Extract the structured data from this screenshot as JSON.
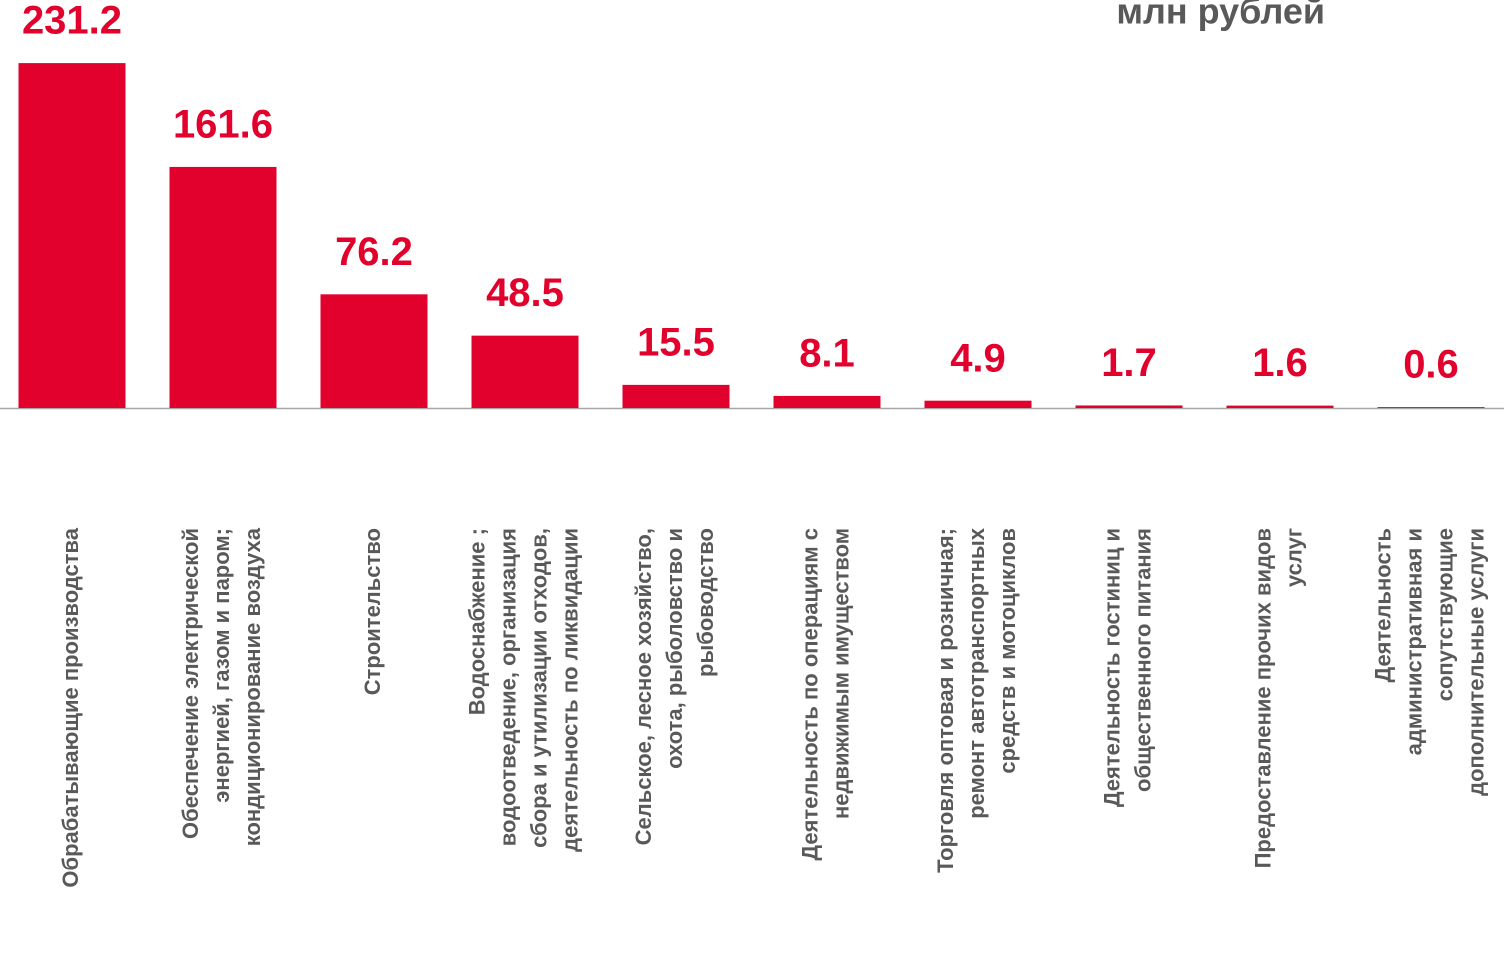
{
  "chart_data": {
    "type": "bar",
    "subtitle": "млн рублей",
    "categories": [
      "Обрабатывающие производства",
      "Обеспечение электрической\nэнергией, газом и паром;\nкондиционирование воздуха",
      "Строительство",
      "Водоснабжение ;\nводоотведение, организация\nсбора и утилизации отходов,\nдеятельность по ликвидации",
      "Сельское, лесное хозяйство,\nохота, рыболовство и\nрыбоводство",
      "Деятельность  по операциям с\nнедвижимым имуществом",
      "Торговля оптовая и розничная;\nремонт автотранспортных\nсредств и мотоциклов",
      "Деятельность гостиниц и\nобщественного питания",
      "Предоставление прочих видов\nуслуг",
      "Деятельность\nадминистративная и\nсопутствующие\nдополнительные услуги"
    ],
    "values": [
      231.2,
      161.6,
      76.2,
      48.5,
      15.5,
      8.1,
      4.9,
      1.7,
      1.6,
      0.6
    ],
    "color": "#e2002d",
    "ylim": [
      0,
      273.5
    ]
  }
}
